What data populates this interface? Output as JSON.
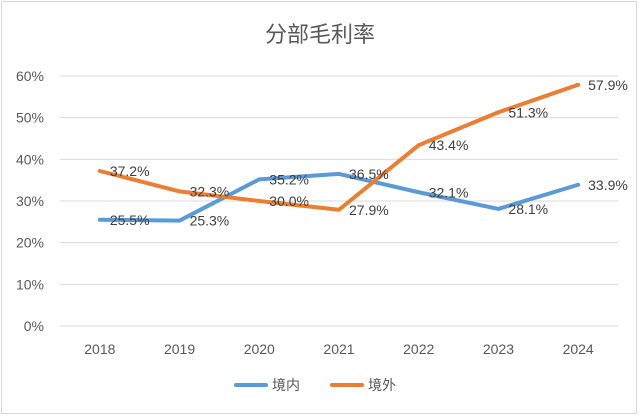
{
  "chart_data": {
    "type": "line",
    "title": "分部毛利率",
    "categories": [
      "2018",
      "2019",
      "2020",
      "2021",
      "2022",
      "2023",
      "2024"
    ],
    "y_ticks": [
      "0%",
      "10%",
      "20%",
      "30%",
      "40%",
      "50%",
      "60%"
    ],
    "ylim": [
      0,
      60
    ],
    "grid": true,
    "legend_position": "bottom",
    "series": [
      {
        "name": "境内",
        "color": "#5B9BD5",
        "values": [
          25.5,
          25.3,
          35.2,
          36.5,
          32.1,
          28.1,
          33.9
        ],
        "labels": [
          "25.5%",
          "25.3%",
          "35.2%",
          "36.5%",
          "32.1%",
          "28.1%",
          "33.9%"
        ]
      },
      {
        "name": "境外",
        "color": "#ED7D31",
        "values": [
          37.2,
          32.3,
          30.0,
          27.9,
          43.4,
          51.3,
          57.9
        ],
        "labels": [
          "37.2%",
          "32.3%",
          "30.0%",
          "27.9%",
          "43.4%",
          "51.3%",
          "57.9%"
        ]
      }
    ]
  }
}
